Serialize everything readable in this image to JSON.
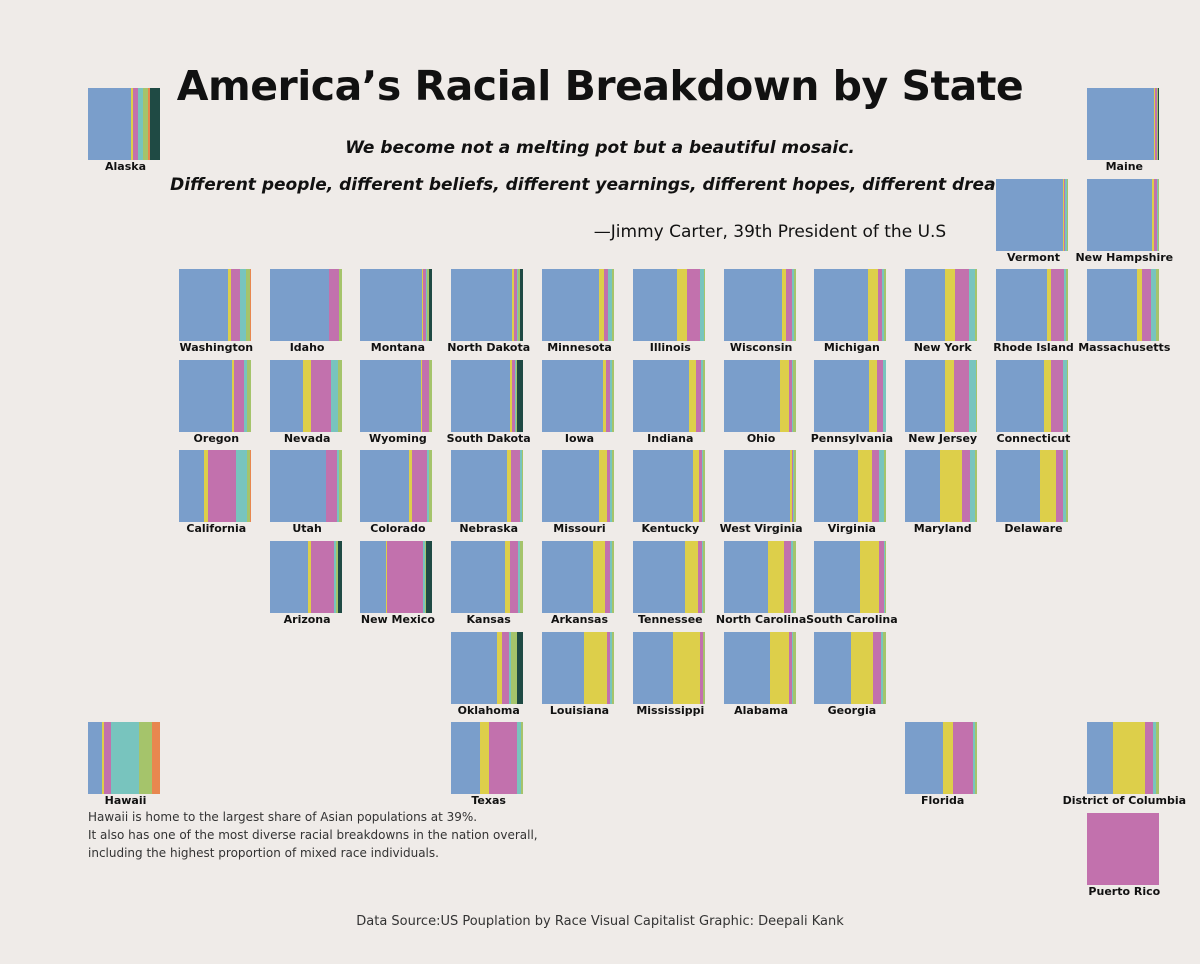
{
  "title": "America’s Racial Breakdown by State",
  "quote": {
    "line1": "We become not a melting pot but a beautiful mosaic.",
    "line2": "Different people, different beliefs, different yearnings, different hopes, different dreams.",
    "attribution": "—Jimmy Carter, 39th President of the U.S"
  },
  "note": {
    "line1": "Hawaii is home to the largest share of Asian populations at 39%.",
    "line2": "It also has one of the most diverse racial breakdowns in the nation overall,",
    "line3": "including the highest proportion of mixed race individuals."
  },
  "data_source": "Data Source:US Pouplation by Race Visual Capitalist Graphic: Deepali Kank",
  "colors": {
    "group1": "#7a9ecb",
    "group2": "#ddcf4a",
    "group3": "#c271ad",
    "group4": "#78c4be",
    "group5": "#a5c46b",
    "group6": "#e8874f",
    "group7": "#1f4a44"
  },
  "chart_data": {
    "type": "tile-map-stacked-bar",
    "unit": "percent of state population",
    "segment_order": [
      "group1",
      "group2",
      "group3",
      "group4",
      "group5",
      "group6",
      "group7"
    ],
    "states": [
      {
        "name": "Alaska",
        "row": 0,
        "col": 0,
        "shares": [
          60,
          3,
          7,
          6,
          8,
          2,
          14
        ]
      },
      {
        "name": "Maine",
        "row": 0,
        "col": 11,
        "shares": [
          94,
          1,
          2,
          1,
          1,
          0,
          1
        ]
      },
      {
        "name": "Vermont",
        "row": 1,
        "col": 10,
        "shares": [
          93,
          1,
          2,
          2,
          2,
          0,
          0
        ]
      },
      {
        "name": "New Hampshire",
        "row": 1,
        "col": 11,
        "shares": [
          91,
          2,
          4,
          2,
          1,
          0,
          0
        ]
      },
      {
        "name": "Washington",
        "row": 2,
        "col": 1,
        "shares": [
          68,
          4,
          13,
          9,
          5,
          1,
          0
        ]
      },
      {
        "name": "Idaho",
        "row": 2,
        "col": 2,
        "shares": [
          82,
          1,
          13,
          1,
          3,
          0,
          0
        ]
      },
      {
        "name": "Montana",
        "row": 2,
        "col": 3,
        "shares": [
          86,
          1,
          4,
          1,
          3,
          0,
          5
        ]
      },
      {
        "name": "North Dakota",
        "row": 2,
        "col": 4,
        "shares": [
          84,
          3,
          4,
          2,
          2,
          0,
          5
        ]
      },
      {
        "name": "Minnesota",
        "row": 2,
        "col": 5,
        "shares": [
          79,
          7,
          6,
          5,
          3,
          0,
          0
        ]
      },
      {
        "name": "Illinois",
        "row": 2,
        "col": 6,
        "shares": [
          61,
          14,
          18,
          6,
          1,
          0,
          0
        ]
      },
      {
        "name": "Wisconsin",
        "row": 2,
        "col": 7,
        "shares": [
          81,
          6,
          8,
          3,
          2,
          0,
          0
        ]
      },
      {
        "name": "Michigan",
        "row": 2,
        "col": 8,
        "shares": [
          75,
          14,
          5,
          3,
          3,
          0,
          0
        ]
      },
      {
        "name": "New York",
        "row": 2,
        "col": 9,
        "shares": [
          55,
          14,
          19,
          9,
          3,
          0,
          0
        ]
      },
      {
        "name": "Rhode Island",
        "row": 2,
        "col": 10,
        "shares": [
          71,
          6,
          17,
          3,
          3,
          0,
          0
        ]
      },
      {
        "name": "Massachusetts",
        "row": 2,
        "col": 11,
        "shares": [
          70,
          7,
          12,
          7,
          4,
          0,
          0
        ]
      },
      {
        "name": "Oregon",
        "row": 3,
        "col": 1,
        "shares": [
          74,
          2,
          14,
          5,
          5,
          0,
          0
        ]
      },
      {
        "name": "Nevada",
        "row": 3,
        "col": 2,
        "shares": [
          47,
          10,
          29,
          9,
          5,
          0,
          0
        ]
      },
      {
        "name": "Wyoming",
        "row": 3,
        "col": 3,
        "shares": [
          84,
          1,
          10,
          1,
          3,
          0,
          1
        ]
      },
      {
        "name": "South Dakota",
        "row": 3,
        "col": 4,
        "shares": [
          82,
          2,
          4,
          2,
          2,
          0,
          8
        ]
      },
      {
        "name": "Iowa",
        "row": 3,
        "col": 5,
        "shares": [
          85,
          4,
          6,
          2,
          3,
          0,
          0
        ]
      },
      {
        "name": "Indiana",
        "row": 3,
        "col": 6,
        "shares": [
          78,
          10,
          7,
          3,
          2,
          0,
          0
        ]
      },
      {
        "name": "Ohio",
        "row": 3,
        "col": 7,
        "shares": [
          78,
          13,
          4,
          2,
          3,
          0,
          0
        ]
      },
      {
        "name": "Pennsylvania",
        "row": 3,
        "col": 8,
        "shares": [
          76,
          11,
          8,
          4,
          1,
          0,
          0
        ]
      },
      {
        "name": "New Jersey",
        "row": 3,
        "col": 9,
        "shares": [
          55,
          13,
          21,
          10,
          1,
          0,
          0
        ]
      },
      {
        "name": "Connecticut",
        "row": 3,
        "col": 10,
        "shares": [
          66,
          10,
          17,
          5,
          2,
          0,
          0
        ]
      },
      {
        "name": "California",
        "row": 4,
        "col": 1,
        "shares": [
          35,
          5,
          40,
          15,
          4,
          1,
          0
        ]
      },
      {
        "name": "Utah",
        "row": 4,
        "col": 2,
        "shares": [
          78,
          1,
          15,
          3,
          3,
          0,
          0
        ]
      },
      {
        "name": "Colorado",
        "row": 4,
        "col": 3,
        "shares": [
          67,
          4,
          22,
          3,
          4,
          0,
          0
        ]
      },
      {
        "name": "Nebraska",
        "row": 4,
        "col": 4,
        "shares": [
          78,
          5,
          12,
          3,
          2,
          0,
          0
        ]
      },
      {
        "name": "Missouri",
        "row": 4,
        "col": 5,
        "shares": [
          79,
          11,
          5,
          2,
          3,
          0,
          0
        ]
      },
      {
        "name": "Kentucky",
        "row": 4,
        "col": 6,
        "shares": [
          84,
          8,
          4,
          2,
          2,
          0,
          0
        ]
      },
      {
        "name": "West Virginia",
        "row": 4,
        "col": 7,
        "shares": [
          92,
          3,
          2,
          1,
          2,
          0,
          0
        ]
      },
      {
        "name": "Virginia",
        "row": 4,
        "col": 8,
        "shares": [
          61,
          19,
          10,
          7,
          3,
          0,
          0
        ]
      },
      {
        "name": "Maryland",
        "row": 4,
        "col": 9,
        "shares": [
          49,
          30,
          11,
          7,
          3,
          0,
          0
        ]
      },
      {
        "name": "Delaware",
        "row": 4,
        "col": 10,
        "shares": [
          61,
          22,
          10,
          4,
          3,
          0,
          0
        ]
      },
      {
        "name": "Arizona",
        "row": 5,
        "col": 2,
        "shares": [
          53,
          4,
          32,
          3,
          3,
          0,
          5
        ]
      },
      {
        "name": "New Mexico",
        "row": 5,
        "col": 3,
        "shares": [
          36,
          2,
          51,
          2,
          2,
          0,
          9
        ]
      },
      {
        "name": "Kansas",
        "row": 5,
        "col": 4,
        "shares": [
          75,
          6,
          12,
          3,
          4,
          0,
          0
        ]
      },
      {
        "name": "Arkansas",
        "row": 5,
        "col": 5,
        "shares": [
          71,
          16,
          8,
          2,
          3,
          0,
          0
        ]
      },
      {
        "name": "Tennessee",
        "row": 5,
        "col": 6,
        "shares": [
          73,
          17,
          6,
          2,
          2,
          0,
          0
        ]
      },
      {
        "name": "North Carolina",
        "row": 5,
        "col": 7,
        "shares": [
          62,
          22,
          10,
          3,
          3,
          0,
          0
        ]
      },
      {
        "name": "South Carolina",
        "row": 5,
        "col": 8,
        "shares": [
          63,
          27,
          6,
          2,
          2,
          0,
          0
        ]
      },
      {
        "name": "Oklahoma",
        "row": 6,
        "col": 4,
        "shares": [
          63,
          7,
          11,
          2,
          9,
          0,
          8
        ]
      },
      {
        "name": "Louisiana",
        "row": 6,
        "col": 5,
        "shares": [
          58,
          32,
          5,
          2,
          3,
          0,
          0
        ]
      },
      {
        "name": "Mississippi",
        "row": 6,
        "col": 6,
        "shares": [
          56,
          38,
          3,
          1,
          2,
          0,
          0
        ]
      },
      {
        "name": "Alabama",
        "row": 6,
        "col": 7,
        "shares": [
          65,
          26,
          4,
          2,
          3,
          0,
          0
        ]
      },
      {
        "name": "Georgia",
        "row": 6,
        "col": 8,
        "shares": [
          51,
          31,
          10,
          4,
          4,
          0,
          0
        ]
      },
      {
        "name": "Hawaii",
        "row": 7,
        "col": 0,
        "shares": [
          20,
          2,
          10,
          39,
          18,
          11,
          0
        ]
      },
      {
        "name": "Texas",
        "row": 7,
        "col": 4,
        "shares": [
          40,
          12,
          40,
          5,
          3,
          0,
          0
        ]
      },
      {
        "name": "Florida",
        "row": 7,
        "col": 9,
        "shares": [
          52,
          15,
          27,
          3,
          3,
          0,
          0
        ]
      },
      {
        "name": "District of Columbia",
        "row": 7,
        "col": 11,
        "shares": [
          36,
          45,
          11,
          4,
          4,
          0,
          0
        ]
      },
      {
        "name": "Puerto Rico",
        "row": 8,
        "col": 11,
        "shares": [
          0,
          0,
          100,
          0,
          0,
          0,
          0
        ]
      }
    ]
  }
}
